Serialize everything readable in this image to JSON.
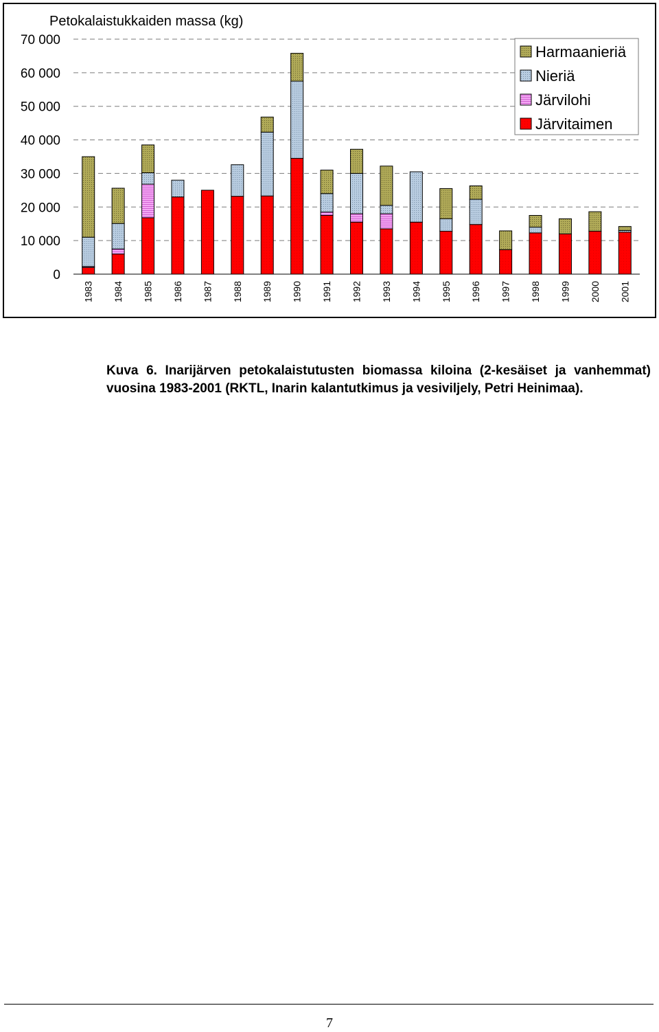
{
  "chart_data": {
    "type": "bar",
    "stacked": true,
    "ylabel": "Petokalaistukkaiden massa (kg)",
    "ylim": [
      0,
      70000
    ],
    "yticks": [
      0,
      10000,
      20000,
      30000,
      40000,
      50000,
      60000,
      70000
    ],
    "ytick_labels": [
      "0",
      "10 000",
      "20 000",
      "30 000",
      "40 000",
      "50 000",
      "60 000",
      "70 000"
    ],
    "grid": true,
    "legend_position": "top-right",
    "categories": [
      "1983",
      "1984",
      "1985",
      "1986",
      "1987",
      "1988",
      "1989",
      "1990",
      "1991",
      "1992",
      "1993",
      "1994",
      "1995",
      "1996",
      "1997",
      "1998",
      "1999",
      "2000",
      "2001"
    ],
    "series": [
      {
        "name": "Järvitaimen",
        "color": "#ff0000",
        "values": [
          2000,
          6000,
          16800,
          23000,
          25000,
          23200,
          23300,
          34500,
          17500,
          15500,
          13500,
          15500,
          12800,
          14800,
          7300,
          12300,
          12000,
          12800,
          12500
        ]
      },
      {
        "name": "Järvilohi",
        "color": "#ee88ee",
        "values": [
          300,
          1500,
          10000,
          0,
          0,
          0,
          0,
          0,
          1000,
          2500,
          4500,
          0,
          0,
          0,
          0,
          0,
          0,
          0,
          0
        ]
      },
      {
        "name": "Nieriä",
        "color": "#a8c0d8",
        "values": [
          8700,
          7600,
          3400,
          5000,
          0,
          9400,
          19000,
          23000,
          5500,
          12000,
          2500,
          15000,
          3700,
          7500,
          0,
          1700,
          0,
          0,
          500
        ]
      },
      {
        "name": "Harmaanieriä",
        "color": "#a09a48",
        "values": [
          24000,
          10500,
          8300,
          0,
          0,
          0,
          4500,
          8300,
          7000,
          7200,
          11700,
          0,
          9000,
          4000,
          5600,
          3500,
          4500,
          5800,
          1200
        ]
      }
    ]
  },
  "caption": "Kuva 6. Inarijärven petokalaistutusten biomassa kiloina (2-kesäiset ja vanhemmat) vuosina 1983-2001 (RKTL, Inarin kalantutkimus ja vesiviljely, Petri Heinimaa).",
  "page_number": "7"
}
